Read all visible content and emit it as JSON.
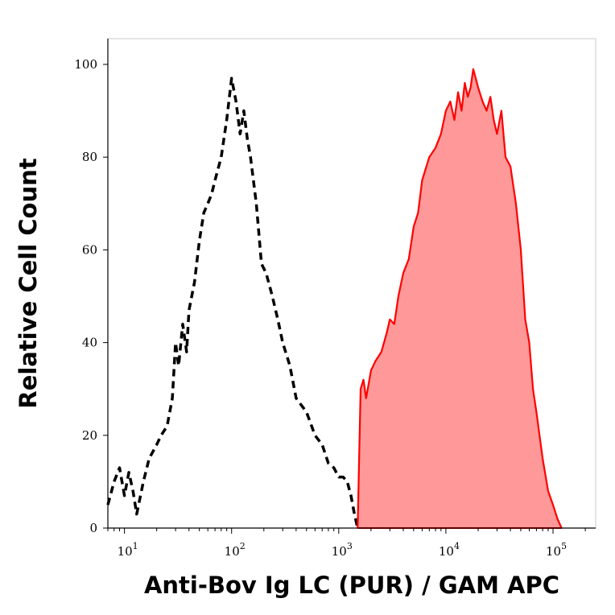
{
  "chart_data": {
    "type": "area",
    "xlabel": "Anti-Bov Ig LC (PUR) / GAM APC",
    "ylabel": "Relative Cell Count",
    "x_scale": "log",
    "xlim": [
      7,
      250000
    ],
    "ylim": [
      0,
      100
    ],
    "x_ticks": [
      {
        "value": 10,
        "base": "10",
        "exp": "1"
      },
      {
        "value": 100,
        "base": "10",
        "exp": "2"
      },
      {
        "value": 1000,
        "base": "10",
        "exp": "3"
      },
      {
        "value": 10000,
        "base": "10",
        "exp": "4"
      },
      {
        "value": 100000,
        "base": "10",
        "exp": "5"
      }
    ],
    "y_ticks": [
      "0",
      "20",
      "40",
      "60",
      "80",
      "100"
    ],
    "y_tick_values": [
      0,
      20,
      40,
      60,
      80,
      100
    ],
    "grid": false,
    "series": [
      {
        "style": "dashed-line",
        "color": "#000000",
        "x": [
          7,
          8,
          9,
          10,
          11,
          12,
          13,
          15,
          17,
          20,
          22,
          25,
          28,
          30,
          32,
          35,
          38,
          40,
          45,
          50,
          55,
          60,
          65,
          70,
          80,
          90,
          100,
          110,
          120,
          130,
          140,
          150,
          170,
          190,
          210,
          240,
          270,
          300,
          350,
          400,
          500,
          600,
          700,
          800,
          900,
          1000,
          1100,
          1200,
          1300,
          1400,
          1500
        ],
        "y": [
          5,
          10,
          13,
          7,
          12,
          8,
          3,
          10,
          15,
          18,
          20,
          22,
          28,
          40,
          35,
          44,
          38,
          47,
          53,
          62,
          68,
          70,
          72,
          75,
          80,
          88,
          97,
          92,
          85,
          90,
          84,
          80,
          70,
          57,
          55,
          50,
          45,
          40,
          35,
          28,
          25,
          20,
          18,
          14,
          13,
          11,
          11,
          10,
          7,
          3,
          0
        ]
      },
      {
        "style": "filled-area",
        "color": "#ff0000",
        "fill": "#ff9999",
        "x": [
          1500,
          1600,
          1700,
          1800,
          2000,
          2200,
          2500,
          2800,
          3000,
          3300,
          3600,
          4000,
          4500,
          5000,
          5500,
          6000,
          7000,
          8000,
          9000,
          10000,
          11000,
          12000,
          13000,
          14000,
          15000,
          16000,
          17000,
          18000,
          19000,
          20000,
          22000,
          24000,
          26000,
          28000,
          30000,
          33000,
          36000,
          40000,
          45000,
          50000,
          55000,
          60000,
          65000,
          70000,
          80000,
          90000,
          100000,
          110000,
          120000
        ],
        "y": [
          0,
          30,
          32,
          28,
          34,
          36,
          38,
          42,
          45,
          44,
          50,
          55,
          58,
          65,
          68,
          75,
          80,
          82,
          85,
          90,
          92,
          88,
          94,
          90,
          96,
          93,
          95,
          99,
          97,
          95,
          92,
          90,
          93,
          88,
          85,
          90,
          80,
          78,
          70,
          60,
          45,
          40,
          30,
          25,
          15,
          8,
          5,
          2,
          0
        ]
      }
    ]
  }
}
